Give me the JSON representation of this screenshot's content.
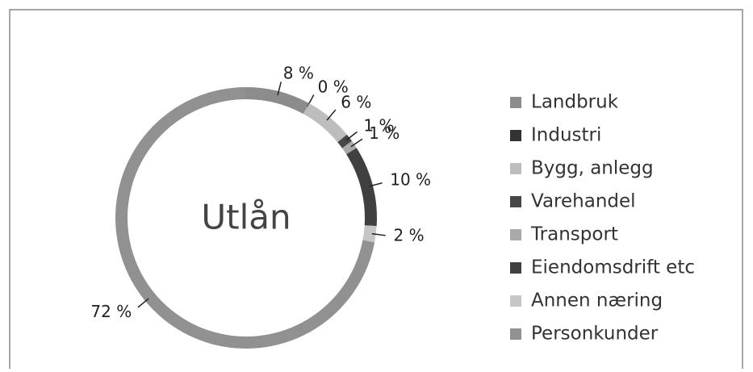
{
  "chart_data": {
    "type": "donut",
    "title": "Utlån",
    "categories": [
      "Landbruk",
      "Industri",
      "Bygg, anlegg",
      "Varehandel",
      "Transport",
      "Eiendomsdrift etc",
      "Annen næring",
      "Personkunder"
    ],
    "values": [
      8,
      0,
      6,
      1,
      1,
      10,
      2,
      72
    ],
    "value_labels": [
      "8 %",
      "0 %",
      "6 %",
      "1 %",
      "1 %",
      "10 %",
      "2 %",
      "72 %"
    ],
    "colors": [
      "#8c8c8c",
      "#333333",
      "#bdbdbd",
      "#474747",
      "#a9a9a9",
      "#404040",
      "#c6c6c6",
      "#919191"
    ],
    "legend": "right"
  }
}
